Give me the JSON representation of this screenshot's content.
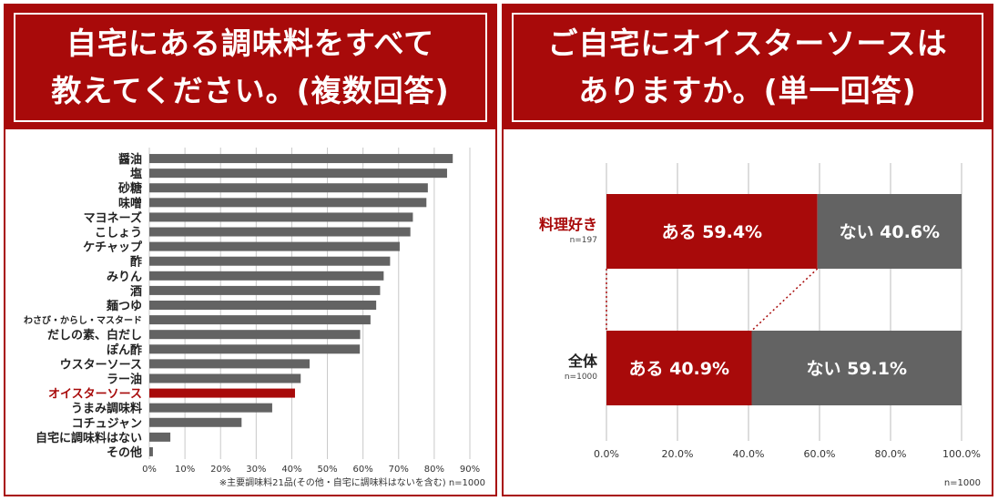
{
  "colors": {
    "accent": "#a80a0a",
    "bar": "#636363",
    "grid": "#c8c8c8",
    "white": "#ffffff"
  },
  "left": {
    "title_line1": "自宅にある調味料をすべて",
    "title_line2": "教えてください。(複数回答)",
    "footnote": "※主要調味料21品(その他・自宅に調味料はないを含む) n=1000"
  },
  "right": {
    "title_line1": "ご自宅にオイスターソースは",
    "title_line2": "ありますか。(単一回答)",
    "n_note": "n=1000"
  },
  "chart_data": [
    {
      "type": "bar",
      "orientation": "horizontal",
      "categories": [
        "醤油",
        "塩",
        "砂糖",
        "味噌",
        "マヨネーズ",
        "こしょう",
        "ケチャップ",
        "酢",
        "みりん",
        "酒",
        "麺つゆ",
        "わさび・からし・マスタード",
        "だしの素、白だし",
        "ぽん酢",
        "ウスターソース",
        "ラー油",
        "オイスターソース",
        "うまみ調味料",
        "コチュジャン",
        "自宅に調味料はない",
        "その他"
      ],
      "values": [
        85.2,
        83.6,
        78.2,
        77.8,
        74.0,
        73.3,
        70.3,
        67.6,
        65.8,
        64.8,
        63.7,
        62.1,
        59.2,
        59.1,
        45.0,
        42.5,
        40.9,
        34.5,
        25.9,
        5.9,
        1.0
      ],
      "highlight": "オイスターソース",
      "xlim": [
        0,
        90
      ],
      "xticks": [
        "0%",
        "10%",
        "20%",
        "30%",
        "40%",
        "50%",
        "60%",
        "70%",
        "80%",
        "90%"
      ],
      "grid": true
    },
    {
      "type": "bar",
      "orientation": "horizontal",
      "stacked": true,
      "rows": [
        {
          "label": "料理好き",
          "n": "n=197",
          "label_color": "#a80a0a",
          "segments": [
            {
              "label": "ある 59.4%",
              "value": 59.4,
              "color": "#a80a0a"
            },
            {
              "label": "ない 40.6%",
              "value": 40.6,
              "color": "#636363"
            }
          ]
        },
        {
          "label": "全体",
          "n": "n=1000",
          "label_color": "#222222",
          "segments": [
            {
              "label": "ある 40.9%",
              "value": 40.9,
              "color": "#a80a0a"
            },
            {
              "label": "ない 59.1%",
              "value": 59.1,
              "color": "#636363"
            }
          ]
        }
      ],
      "xlim": [
        0,
        100
      ],
      "xticks": [
        "0.0%",
        "20.0%",
        "40.0%",
        "60.0%",
        "80.0%",
        "100.0%"
      ],
      "grid": true
    }
  ]
}
